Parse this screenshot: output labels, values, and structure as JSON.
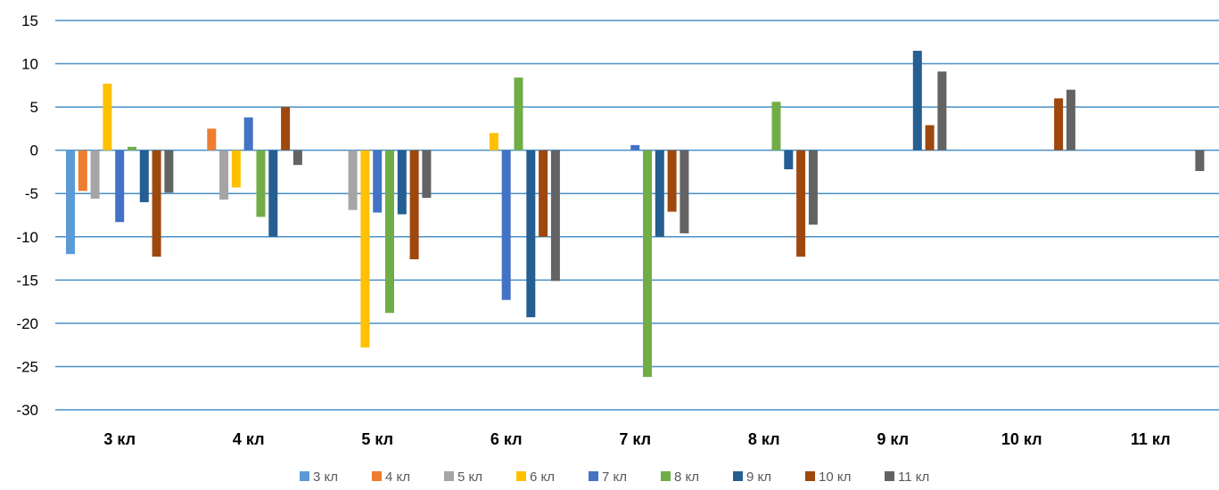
{
  "chart_data": {
    "type": "bar",
    "title": "",
    "xlabel": "",
    "ylabel": "",
    "ylim": [
      -30,
      15
    ],
    "y_ticks": [
      15,
      10,
      5,
      0,
      -5,
      -10,
      -15,
      -20,
      -25,
      -30
    ],
    "grid": true,
    "legend_position": "bottom",
    "categories": [
      "3 кл",
      "4 кл",
      "5 кл",
      "6 кл",
      "7 кл",
      "8 кл",
      "9 кл",
      "10 кл",
      "11 кл"
    ],
    "series": [
      {
        "name": "3 кл",
        "color": "#5B9BD5",
        "values": [
          -12.0,
          null,
          null,
          null,
          null,
          null,
          null,
          null,
          null
        ]
      },
      {
        "name": "4 кл",
        "color": "#ED7D31",
        "values": [
          -4.7,
          2.5,
          null,
          null,
          null,
          null,
          null,
          null,
          null
        ]
      },
      {
        "name": "5 кл",
        "color": "#A5A5A5",
        "values": [
          -5.6,
          -5.7,
          -6.9,
          null,
          null,
          null,
          null,
          null,
          null
        ]
      },
      {
        "name": "6 кл",
        "color": "#FFC000",
        "values": [
          7.7,
          -4.3,
          -22.8,
          2.0,
          null,
          null,
          null,
          null,
          null
        ]
      },
      {
        "name": "7 кл",
        "color": "#4472C4",
        "values": [
          -8.3,
          3.8,
          -7.2,
          -17.3,
          0.6,
          null,
          null,
          null,
          null
        ]
      },
      {
        "name": "8 кл",
        "color": "#70AD47",
        "values": [
          0.4,
          -7.7,
          -18.8,
          8.4,
          -26.2,
          5.6,
          null,
          null,
          null
        ]
      },
      {
        "name": "9 кл",
        "color": "#255E91",
        "values": [
          -6.0,
          -10.0,
          -7.4,
          -19.3,
          -10.0,
          -2.2,
          11.5,
          null,
          null
        ]
      },
      {
        "name": "10 кл",
        "color": "#9E480E",
        "values": [
          -12.3,
          5.0,
          -12.6,
          -10.0,
          -7.1,
          -12.3,
          2.9,
          6.0,
          null
        ]
      },
      {
        "name": "11 кл",
        "color": "#636363",
        "values": [
          -4.9,
          -1.7,
          -5.5,
          -15.1,
          -9.6,
          -8.6,
          9.1,
          7.0,
          -2.4
        ]
      }
    ]
  }
}
